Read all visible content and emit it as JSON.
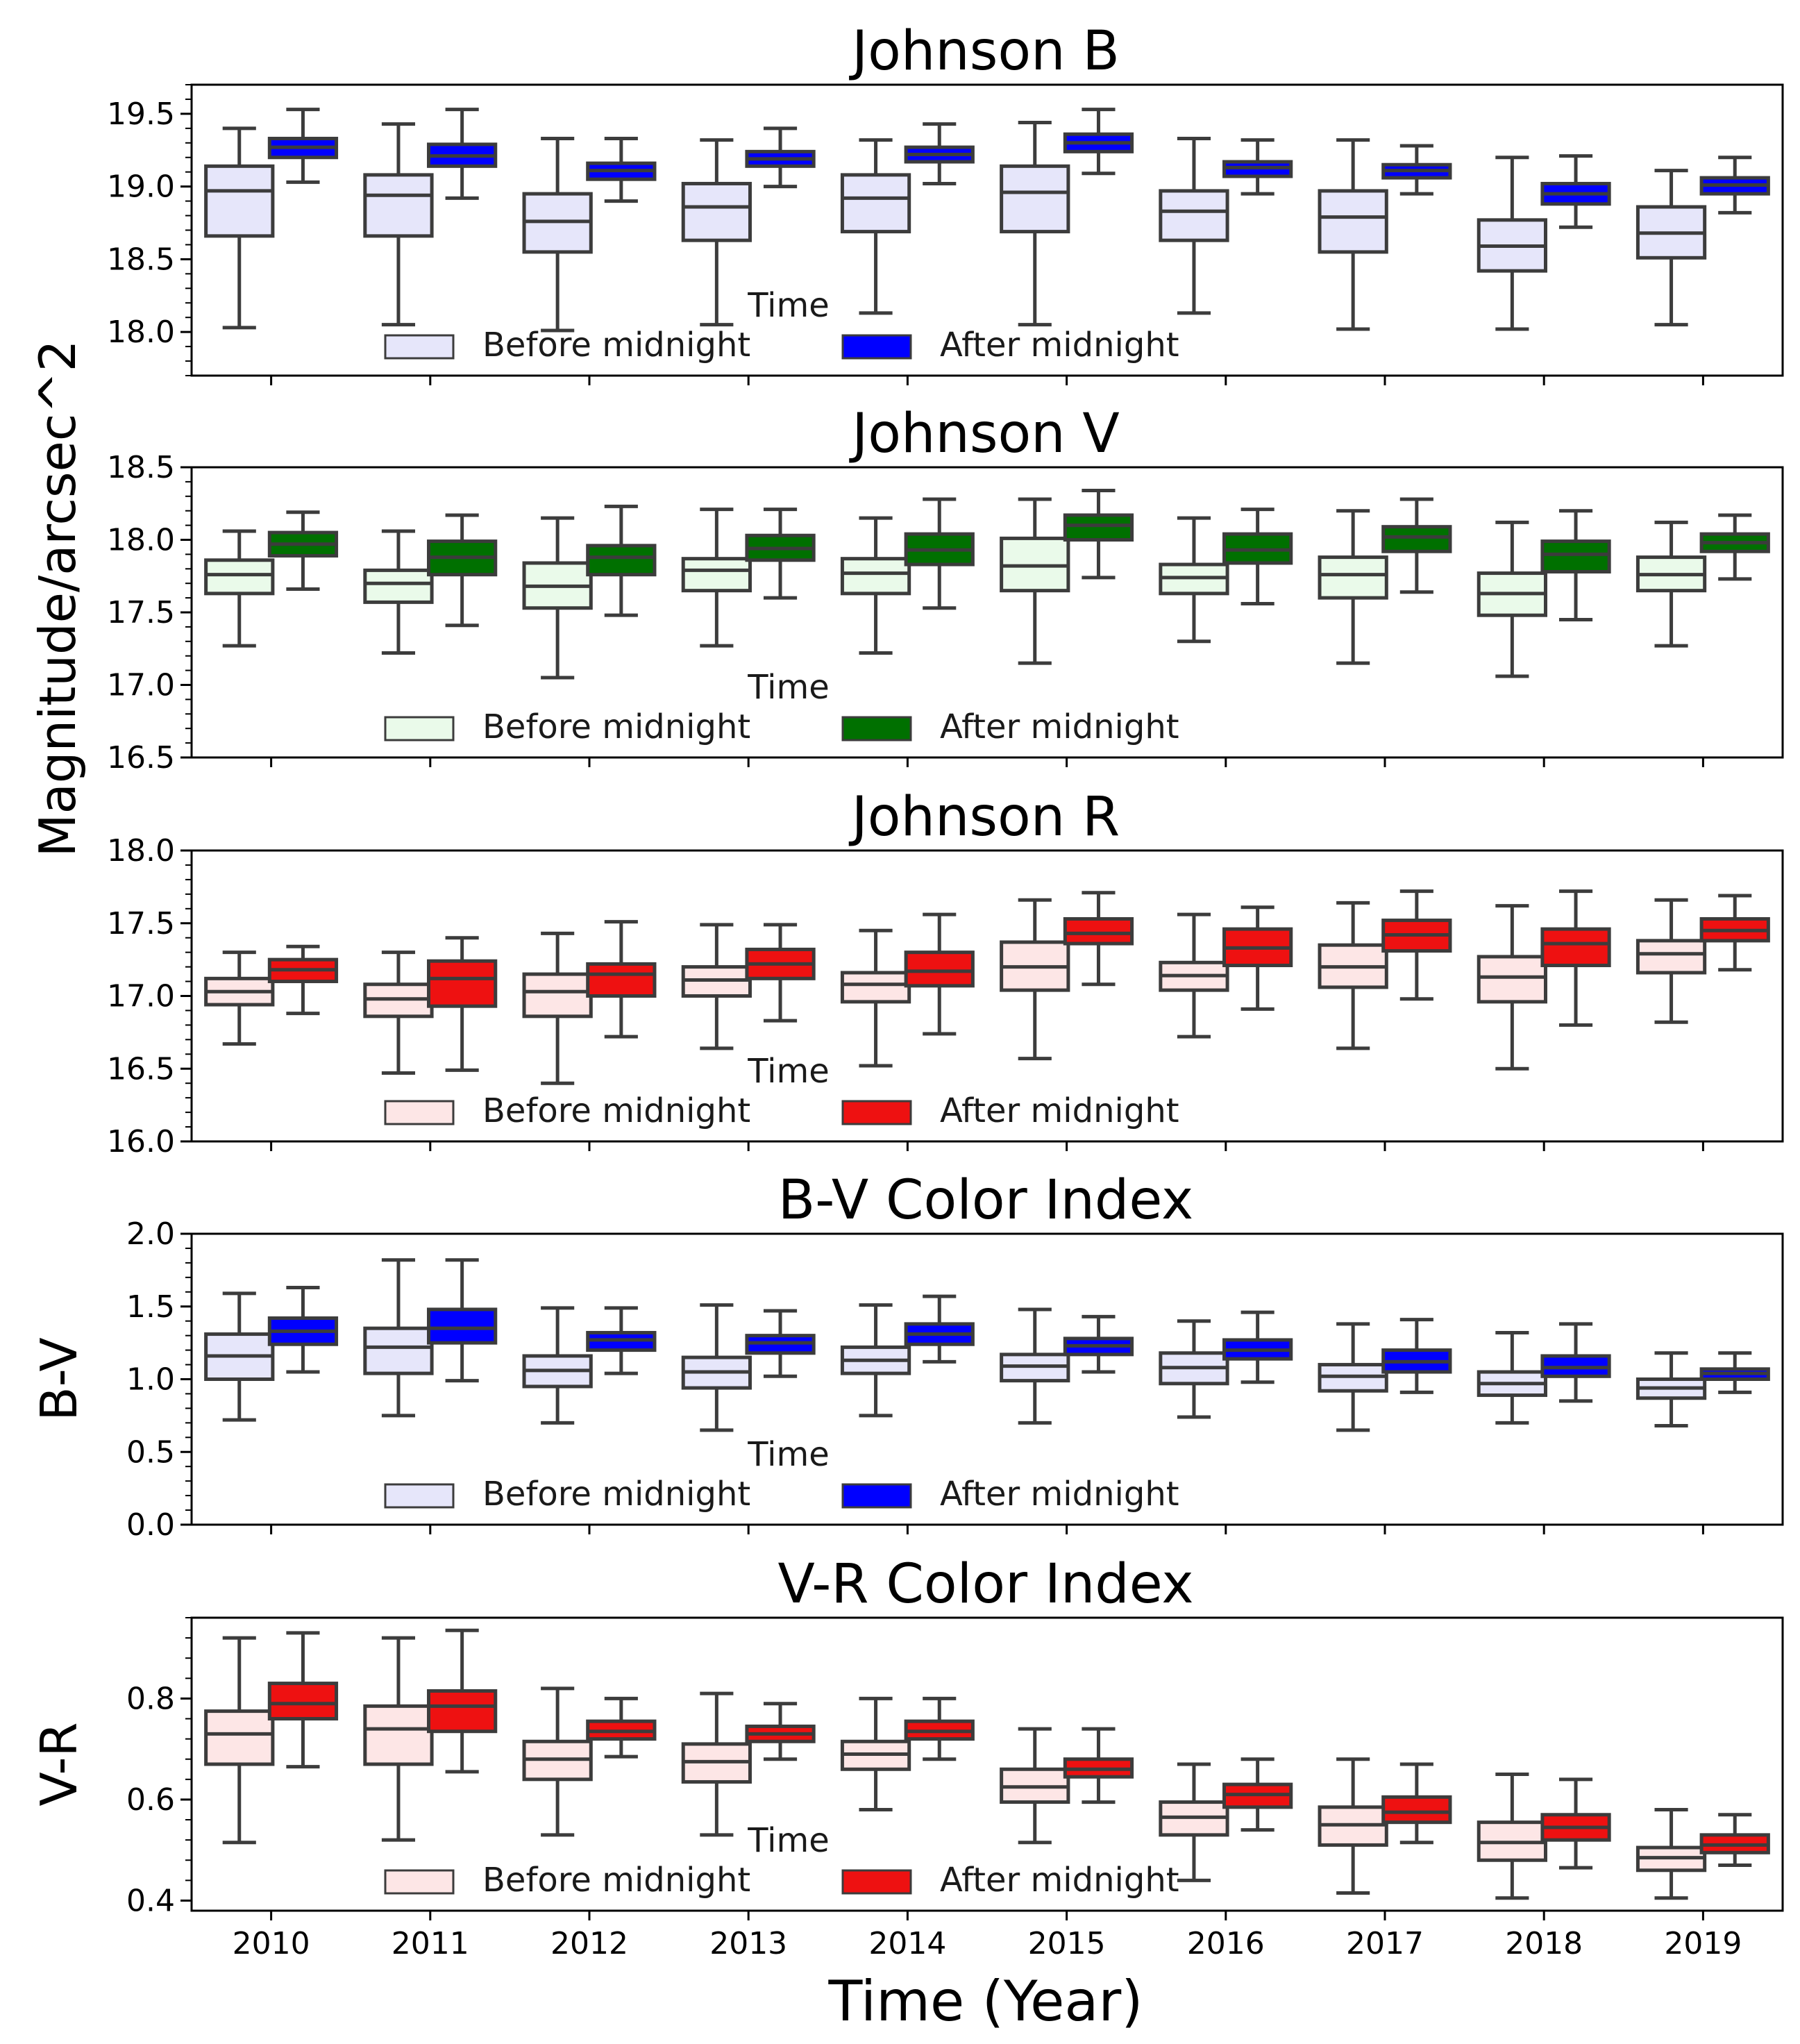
{
  "shared": {
    "ylabel_main": "Magnitude/arcsec^2",
    "xlabel": "Time (Year)",
    "legend_title": "Time",
    "legend_before": "Before midnight",
    "legend_after": "After midnight"
  },
  "chart_data": [
    {
      "type": "box",
      "title": "Johnson B",
      "ylabel": "",
      "categories": [
        "2010",
        "2011",
        "2012",
        "2013",
        "2014",
        "2015",
        "2016",
        "2017",
        "2018",
        "2019"
      ],
      "ylim": [
        17.7,
        19.7
      ],
      "yticks": [
        "18.0",
        "18.5",
        "19.0",
        "19.5"
      ],
      "ytick_values": [
        18.0,
        18.5,
        19.0,
        19.5
      ],
      "colors": {
        "before": "#e6e6fa",
        "after": "#0000ff"
      },
      "series": [
        {
          "name": "Before midnight",
          "boxes": [
            [
              18.03,
              18.66,
              18.97,
              19.14,
              19.4
            ],
            [
              18.05,
              18.66,
              18.94,
              19.08,
              19.43
            ],
            [
              18.01,
              18.55,
              18.76,
              18.95,
              19.33
            ],
            [
              18.05,
              18.63,
              18.86,
              19.02,
              19.32
            ],
            [
              18.13,
              18.69,
              18.92,
              19.08,
              19.32
            ],
            [
              18.05,
              18.69,
              18.96,
              19.14,
              19.44
            ],
            [
              18.13,
              18.63,
              18.83,
              18.97,
              19.33
            ],
            [
              18.02,
              18.55,
              18.79,
              18.97,
              19.32
            ],
            [
              18.02,
              18.42,
              18.59,
              18.77,
              19.2
            ],
            [
              18.05,
              18.51,
              18.68,
              18.86,
              19.11
            ]
          ]
        },
        {
          "name": "After midnight",
          "boxes": [
            [
              19.03,
              19.2,
              19.27,
              19.33,
              19.53
            ],
            [
              18.92,
              19.14,
              19.21,
              19.29,
              19.53
            ],
            [
              18.9,
              19.05,
              19.11,
              19.16,
              19.33
            ],
            [
              19.0,
              19.14,
              19.19,
              19.24,
              19.4
            ],
            [
              19.02,
              19.17,
              19.22,
              19.27,
              19.43
            ],
            [
              19.09,
              19.24,
              19.3,
              19.36,
              19.53
            ],
            [
              18.95,
              19.07,
              19.13,
              19.17,
              19.32
            ],
            [
              18.95,
              19.06,
              19.11,
              19.15,
              19.28
            ],
            [
              18.72,
              18.88,
              18.95,
              19.02,
              19.21
            ],
            [
              18.82,
              18.95,
              19.01,
              19.06,
              19.2
            ]
          ]
        }
      ]
    },
    {
      "type": "box",
      "title": "Johnson V",
      "ylabel": "",
      "categories": [
        "2010",
        "2011",
        "2012",
        "2013",
        "2014",
        "2015",
        "2016",
        "2017",
        "2018",
        "2019"
      ],
      "ylim": [
        16.5,
        18.5
      ],
      "yticks": [
        "16.5",
        "17.0",
        "17.5",
        "18.0",
        "18.5"
      ],
      "ytick_values": [
        16.5,
        17.0,
        17.5,
        18.0,
        18.5
      ],
      "colors": {
        "before": "#eafaea",
        "after": "#007000"
      },
      "series": [
        {
          "name": "Before midnight",
          "boxes": [
            [
              17.27,
              17.63,
              17.76,
              17.86,
              18.06
            ],
            [
              17.22,
              17.57,
              17.7,
              17.79,
              18.06
            ],
            [
              17.05,
              17.53,
              17.68,
              17.84,
              18.15
            ],
            [
              17.27,
              17.65,
              17.79,
              17.87,
              18.21
            ],
            [
              17.22,
              17.63,
              17.77,
              17.87,
              18.15
            ],
            [
              17.15,
              17.65,
              17.82,
              18.01,
              18.28
            ],
            [
              17.3,
              17.63,
              17.74,
              17.83,
              18.15
            ],
            [
              17.15,
              17.6,
              17.76,
              17.88,
              18.2
            ],
            [
              17.06,
              17.48,
              17.63,
              17.77,
              18.12
            ],
            [
              17.27,
              17.65,
              17.76,
              17.88,
              18.12
            ]
          ]
        },
        {
          "name": "After midnight",
          "boxes": [
            [
              17.66,
              17.89,
              17.97,
              18.05,
              18.19
            ],
            [
              17.41,
              17.76,
              17.88,
              17.99,
              18.17
            ],
            [
              17.48,
              17.76,
              17.88,
              17.96,
              18.23
            ],
            [
              17.6,
              17.86,
              17.94,
              18.03,
              18.21
            ],
            [
              17.53,
              17.83,
              17.93,
              18.04,
              18.28
            ],
            [
              17.74,
              18.0,
              18.1,
              18.17,
              18.34
            ],
            [
              17.56,
              17.84,
              17.93,
              18.04,
              18.21
            ],
            [
              17.64,
              17.92,
              18.02,
              18.09,
              18.28
            ],
            [
              17.45,
              17.78,
              17.9,
              17.99,
              18.2
            ],
            [
              17.73,
              17.92,
              17.98,
              18.04,
              18.17
            ]
          ]
        }
      ]
    },
    {
      "type": "box",
      "title": "Johnson R",
      "ylabel": "",
      "categories": [
        "2010",
        "2011",
        "2012",
        "2013",
        "2014",
        "2015",
        "2016",
        "2017",
        "2018",
        "2019"
      ],
      "ylim": [
        16.0,
        18.0
      ],
      "yticks": [
        "16.0",
        "16.5",
        "17.0",
        "17.5",
        "18.0"
      ],
      "ytick_values": [
        16.0,
        16.5,
        17.0,
        17.5,
        18.0
      ],
      "colors": {
        "before": "#fde6e6",
        "after": "#ee1111"
      },
      "series": [
        {
          "name": "Before midnight",
          "boxes": [
            [
              16.67,
              16.94,
              17.03,
              17.12,
              17.3
            ],
            [
              16.47,
              16.86,
              16.98,
              17.08,
              17.3
            ],
            [
              16.4,
              16.86,
              17.03,
              17.15,
              17.43
            ],
            [
              16.64,
              17.0,
              17.11,
              17.2,
              17.49
            ],
            [
              16.52,
              16.96,
              17.08,
              17.16,
              17.45
            ],
            [
              16.57,
              17.04,
              17.2,
              17.37,
              17.66
            ],
            [
              16.72,
              17.04,
              17.14,
              17.23,
              17.56
            ],
            [
              16.64,
              17.06,
              17.2,
              17.35,
              17.64
            ],
            [
              16.5,
              16.96,
              17.13,
              17.27,
              17.62
            ],
            [
              16.82,
              17.16,
              17.29,
              17.38,
              17.66
            ]
          ]
        },
        {
          "name": "After midnight",
          "boxes": [
            [
              16.88,
              17.1,
              17.18,
              17.25,
              17.34
            ],
            [
              16.49,
              16.93,
              17.12,
              17.24,
              17.4
            ],
            [
              16.72,
              17.0,
              17.15,
              17.22,
              17.51
            ],
            [
              16.83,
              17.12,
              17.22,
              17.32,
              17.49
            ],
            [
              16.74,
              17.07,
              17.17,
              17.3,
              17.56
            ],
            [
              17.08,
              17.36,
              17.43,
              17.53,
              17.71
            ],
            [
              16.91,
              17.21,
              17.33,
              17.46,
              17.61
            ],
            [
              16.98,
              17.31,
              17.42,
              17.52,
              17.72
            ],
            [
              16.8,
              17.21,
              17.36,
              17.46,
              17.72
            ],
            [
              17.18,
              17.38,
              17.45,
              17.53,
              17.69
            ]
          ]
        }
      ]
    },
    {
      "type": "box",
      "title": "B-V Color Index",
      "ylabel": "B-V",
      "categories": [
        "2010",
        "2011",
        "2012",
        "2013",
        "2014",
        "2015",
        "2016",
        "2017",
        "2018",
        "2019"
      ],
      "ylim": [
        0.0,
        2.0
      ],
      "yticks": [
        "0.0",
        "0.5",
        "1.0",
        "1.5",
        "2.0"
      ],
      "ytick_values": [
        0.0,
        0.5,
        1.0,
        1.5,
        2.0
      ],
      "colors": {
        "before": "#e6e6fa",
        "after": "#0000ff"
      },
      "series": [
        {
          "name": "Before midnight",
          "boxes": [
            [
              0.72,
              1.0,
              1.16,
              1.31,
              1.59
            ],
            [
              0.75,
              1.04,
              1.22,
              1.35,
              1.82
            ],
            [
              0.7,
              0.95,
              1.06,
              1.16,
              1.49
            ],
            [
              0.65,
              0.94,
              1.05,
              1.15,
              1.51
            ],
            [
              0.75,
              1.04,
              1.13,
              1.22,
              1.51
            ],
            [
              0.7,
              0.99,
              1.09,
              1.17,
              1.48
            ],
            [
              0.74,
              0.97,
              1.08,
              1.18,
              1.4
            ],
            [
              0.65,
              0.92,
              1.02,
              1.1,
              1.38
            ],
            [
              0.7,
              0.89,
              0.97,
              1.05,
              1.32
            ],
            [
              0.68,
              0.87,
              0.94,
              1.0,
              1.18
            ]
          ]
        },
        {
          "name": "After midnight",
          "boxes": [
            [
              1.05,
              1.24,
              1.33,
              1.42,
              1.63
            ],
            [
              0.99,
              1.25,
              1.35,
              1.48,
              1.82
            ],
            [
              1.04,
              1.2,
              1.27,
              1.32,
              1.49
            ],
            [
              1.02,
              1.18,
              1.25,
              1.3,
              1.47
            ],
            [
              1.12,
              1.24,
              1.31,
              1.38,
              1.57
            ],
            [
              1.05,
              1.17,
              1.23,
              1.28,
              1.43
            ],
            [
              0.98,
              1.14,
              1.2,
              1.27,
              1.46
            ],
            [
              0.91,
              1.05,
              1.12,
              1.2,
              1.41
            ],
            [
              0.85,
              1.02,
              1.08,
              1.16,
              1.38
            ],
            [
              0.91,
              1.0,
              1.04,
              1.07,
              1.18
            ]
          ]
        }
      ]
    },
    {
      "type": "box",
      "title": "V-R Color Index",
      "ylabel": "V-R",
      "categories": [
        "2010",
        "2011",
        "2012",
        "2013",
        "2014",
        "2015",
        "2016",
        "2017",
        "2018",
        "2019"
      ],
      "ylim": [
        0.38,
        0.96
      ],
      "yticks": [
        "0.4",
        "0.6",
        "0.8"
      ],
      "ytick_values": [
        0.4,
        0.6,
        0.8
      ],
      "colors": {
        "before": "#fde6e6",
        "after": "#ee1111"
      },
      "series": [
        {
          "name": "Before midnight",
          "boxes": [
            [
              0.515,
              0.67,
              0.73,
              0.775,
              0.92
            ],
            [
              0.52,
              0.67,
              0.74,
              0.785,
              0.92
            ],
            [
              0.53,
              0.64,
              0.68,
              0.715,
              0.82
            ],
            [
              0.53,
              0.635,
              0.675,
              0.71,
              0.81
            ],
            [
              0.58,
              0.66,
              0.69,
              0.715,
              0.8
            ],
            [
              0.515,
              0.595,
              0.625,
              0.66,
              0.74
            ],
            [
              0.44,
              0.53,
              0.565,
              0.595,
              0.67
            ],
            [
              0.415,
              0.51,
              0.55,
              0.585,
              0.68
            ],
            [
              0.405,
              0.48,
              0.515,
              0.555,
              0.65
            ],
            [
              0.405,
              0.46,
              0.485,
              0.505,
              0.58
            ]
          ]
        },
        {
          "name": "After midnight",
          "boxes": [
            [
              0.665,
              0.76,
              0.79,
              0.83,
              0.93
            ],
            [
              0.655,
              0.735,
              0.785,
              0.815,
              0.935
            ],
            [
              0.685,
              0.72,
              0.735,
              0.755,
              0.8
            ],
            [
              0.68,
              0.715,
              0.73,
              0.745,
              0.79
            ],
            [
              0.68,
              0.72,
              0.735,
              0.755,
              0.8
            ],
            [
              0.595,
              0.645,
              0.66,
              0.68,
              0.74
            ],
            [
              0.54,
              0.585,
              0.61,
              0.63,
              0.68
            ],
            [
              0.515,
              0.555,
              0.575,
              0.605,
              0.67
            ],
            [
              0.465,
              0.52,
              0.545,
              0.57,
              0.64
            ],
            [
              0.47,
              0.495,
              0.51,
              0.53,
              0.57
            ]
          ]
        }
      ]
    }
  ]
}
